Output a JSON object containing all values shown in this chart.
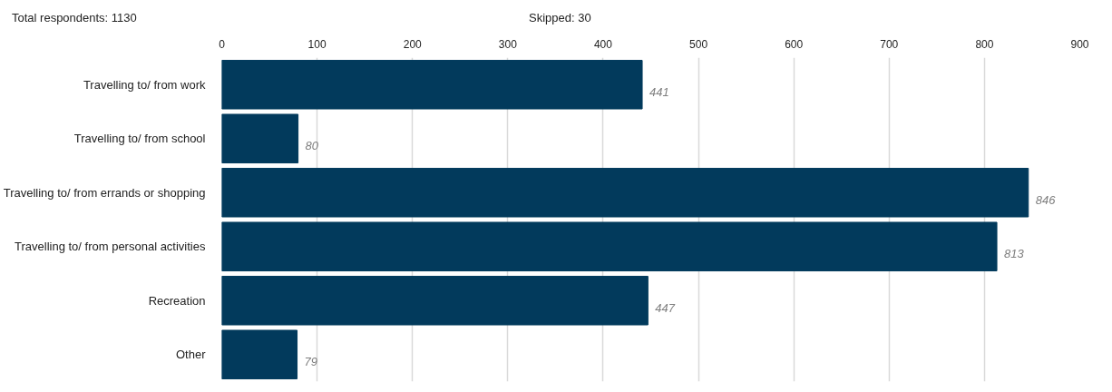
{
  "chart_data": {
    "type": "bar",
    "orientation": "horizontal",
    "annotations": [
      "Total respondents: 1130",
      "Skipped: 30"
    ],
    "categories": [
      "Travelling to/ from work",
      "Travelling to/ from school",
      "Travelling to/ from errands or shopping",
      "Travelling to/ from personal activities",
      "Recreation",
      "Other"
    ],
    "values": [
      441,
      80,
      846,
      813,
      447,
      79
    ],
    "color": "#023a5c",
    "xlim": [
      0,
      900
    ],
    "xticks": [
      0,
      100,
      200,
      300,
      400,
      500,
      600,
      700,
      800,
      900
    ],
    "grid": "x",
    "data_labels": true
  }
}
